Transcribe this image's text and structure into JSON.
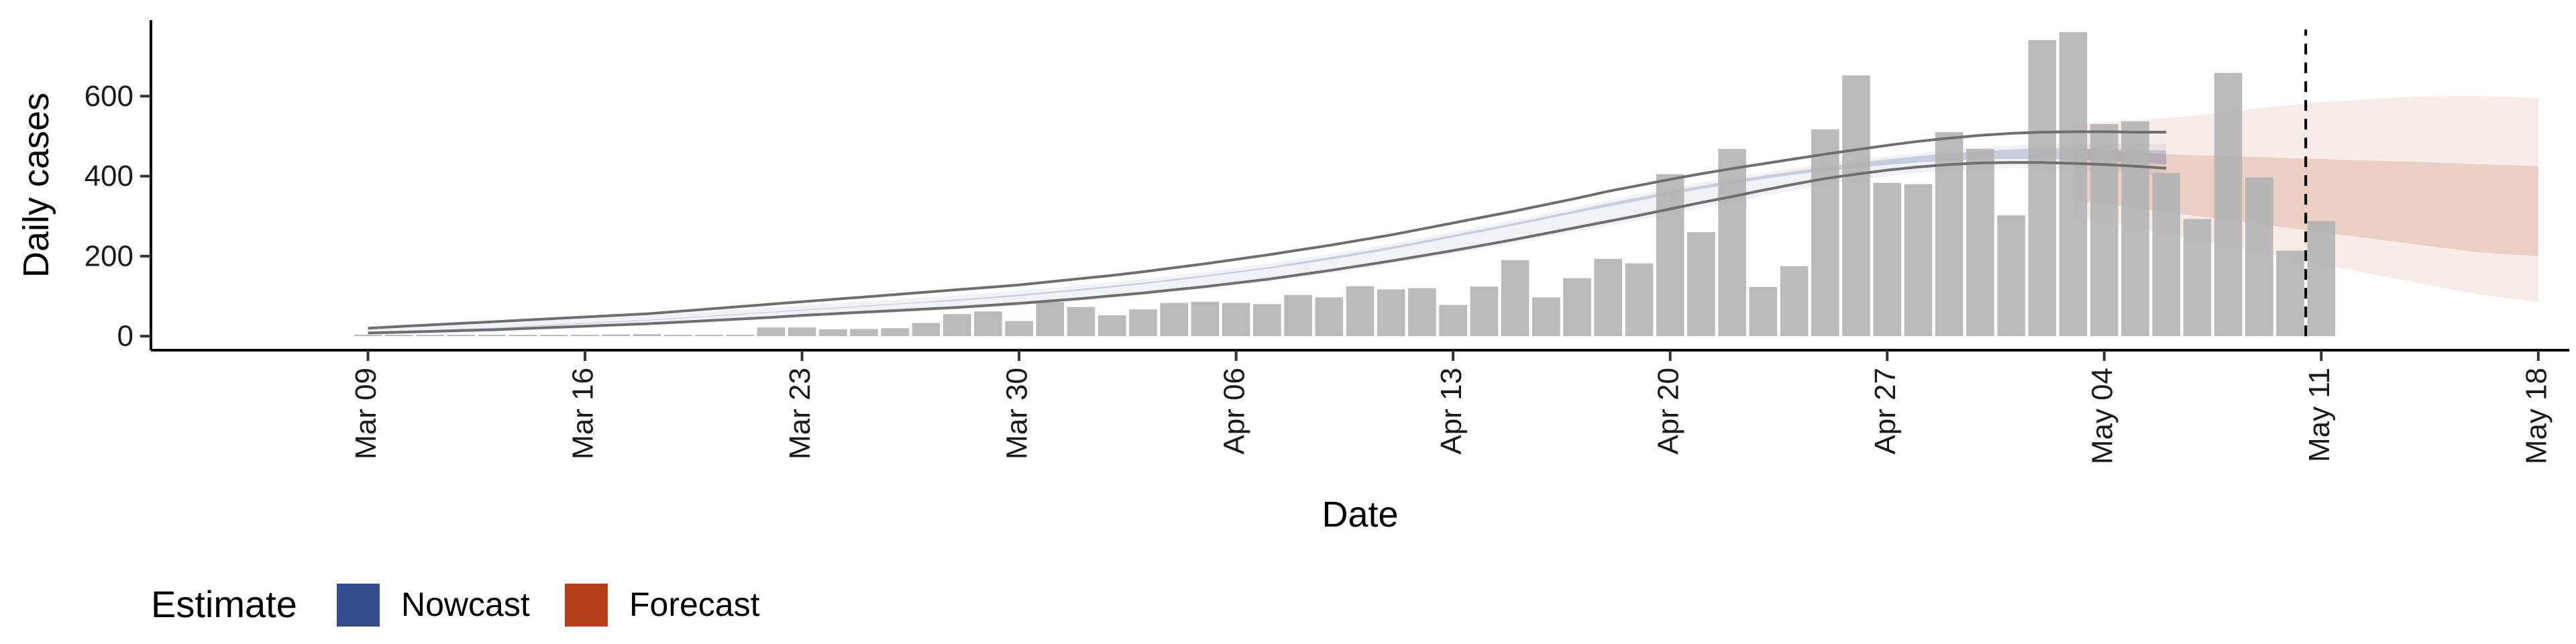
{
  "chart_data": {
    "type": "bar",
    "title": "",
    "xlabel": "Date",
    "ylabel": "Daily cases",
    "ylim": [
      -35,
      790
    ],
    "xlim": [
      "2020-03-02",
      "2020-05-19"
    ],
    "x_tick_dates": [
      "2020-03-09",
      "2020-03-16",
      "2020-03-23",
      "2020-03-30",
      "2020-04-06",
      "2020-04-13",
      "2020-04-20",
      "2020-04-27",
      "2020-05-04",
      "2020-05-11",
      "2020-05-18"
    ],
    "x_tick_labels": [
      "Mar 09",
      "Mar 16",
      "Mar 23",
      "Mar 30",
      "Apr 06",
      "Apr 13",
      "Apr 20",
      "Apr 27",
      "May 04",
      "May 11",
      "May 18"
    ],
    "y_ticks": [
      0,
      200,
      400,
      600
    ],
    "y_tick_labels": [
      "0",
      "200",
      "400",
      "600"
    ],
    "grid": false,
    "vline_date": "2020-05-10",
    "bars": {
      "start_date": "2020-03-09",
      "values": [
        1,
        0,
        0,
        0,
        0,
        0,
        2,
        0,
        4,
        5,
        3,
        0,
        0,
        22,
        22,
        17,
        18,
        20,
        33,
        55,
        62,
        38,
        85,
        73,
        52,
        67,
        83,
        86,
        83,
        80,
        103,
        97,
        125,
        117,
        120,
        78,
        124,
        190,
        97,
        145,
        193,
        182,
        405,
        260,
        468,
        123,
        175,
        517,
        652,
        383,
        380,
        510,
        468,
        302,
        740,
        760,
        530,
        537,
        408,
        293,
        658,
        397,
        214,
        288
      ],
      "color": "#b3b3b3"
    },
    "nowcast": {
      "start_date": "2020-03-09",
      "color": "#334c8c",
      "median": [
        8,
        11,
        14,
        17,
        20,
        24,
        28,
        32,
        36,
        40,
        45,
        50,
        55,
        60,
        65,
        70,
        75,
        80,
        85,
        90,
        96,
        102,
        109,
        116,
        124,
        132,
        141,
        150,
        160,
        170,
        182,
        194,
        207,
        220,
        235,
        250,
        265,
        280,
        296,
        312,
        328,
        343,
        358,
        372,
        385,
        397,
        408,
        418,
        427,
        435,
        442,
        448,
        452,
        455,
        456,
        455,
        453,
        450,
        447
      ],
      "inner_low": [
        7,
        10,
        13,
        16,
        19,
        23,
        27,
        31,
        35,
        39,
        44,
        49,
        54,
        59,
        64,
        69,
        74,
        79,
        84,
        88,
        94,
        100,
        107,
        114,
        122,
        130,
        139,
        148,
        158,
        168,
        179,
        191,
        204,
        217,
        232,
        247,
        262,
        277,
        293,
        309,
        324,
        339,
        354,
        368,
        381,
        393,
        404,
        413,
        421,
        428,
        434,
        439,
        442,
        443,
        443,
        441,
        438,
        434,
        430
      ],
      "inner_high": [
        9,
        12,
        15,
        18,
        21,
        25,
        29,
        33,
        37,
        41,
        46,
        51,
        56,
        61,
        66,
        71,
        76,
        81,
        86,
        92,
        98,
        104,
        111,
        118,
        126,
        134,
        143,
        152,
        162,
        172,
        185,
        197,
        210,
        223,
        238,
        253,
        268,
        283,
        299,
        315,
        332,
        347,
        362,
        376,
        389,
        401,
        412,
        423,
        433,
        442,
        450,
        457,
        462,
        467,
        469,
        469,
        468,
        466,
        464
      ],
      "outer_low": [
        3,
        5,
        7,
        9,
        11,
        14,
        17,
        20,
        23,
        26,
        30,
        34,
        38,
        42,
        46,
        50,
        54,
        58,
        62,
        66,
        71,
        76,
        82,
        88,
        95,
        102,
        110,
        118,
        127,
        136,
        146,
        157,
        168,
        180,
        193,
        206,
        219,
        233,
        248,
        262,
        276,
        290,
        305,
        320,
        335,
        350,
        365,
        379,
        390,
        400,
        408,
        414,
        418,
        420,
        420,
        418,
        414,
        408,
        400
      ],
      "outer_high": [
        17,
        20,
        24,
        28,
        32,
        36,
        40,
        44,
        48,
        52,
        57,
        62,
        67,
        72,
        77,
        82,
        87,
        92,
        97,
        102,
        108,
        114,
        121,
        128,
        135,
        143,
        152,
        161,
        171,
        181,
        193,
        205,
        218,
        231,
        246,
        261,
        276,
        291,
        307,
        323,
        340,
        355,
        370,
        384,
        397,
        409,
        420,
        430,
        440,
        450,
        458,
        466,
        472,
        477,
        480,
        481,
        481,
        480,
        480
      ]
    },
    "bounds_lines": {
      "start_date": "2020-03-09",
      "color": "#6e6e6e",
      "lower": [
        8,
        10,
        12,
        14,
        16,
        19,
        22,
        25,
        28,
        31,
        35,
        39,
        43,
        47,
        52,
        56,
        60,
        64,
        68,
        72,
        77,
        82,
        88,
        94,
        101,
        108,
        116,
        124,
        133,
        142,
        153,
        164,
        176,
        188,
        201,
        214,
        228,
        242,
        257,
        272,
        287,
        302,
        318,
        334,
        349,
        365,
        380,
        394,
        405,
        415,
        423,
        429,
        433,
        434,
        434,
        432,
        429,
        425,
        420
      ],
      "upper": [
        20,
        24,
        28,
        32,
        36,
        40,
        44,
        48,
        52,
        56,
        62,
        68,
        74,
        80,
        86,
        92,
        98,
        104,
        110,
        116,
        122,
        128,
        136,
        144,
        152,
        161,
        171,
        181,
        192,
        203,
        215,
        227,
        240,
        253,
        268,
        283,
        298,
        313,
        329,
        345,
        362,
        377,
        392,
        406,
        419,
        431,
        443,
        455,
        466,
        477,
        487,
        495,
        502,
        507,
        510,
        511,
        511,
        510,
        510
      ]
    },
    "forecast": {
      "start_date": "2020-05-03",
      "color": "#b5401a",
      "inner_low": [
        340,
        330,
        320,
        310,
        300,
        290,
        280,
        270,
        260,
        250,
        240,
        230,
        220,
        210,
        205,
        200
      ],
      "inner_high": [
        470,
        465,
        460,
        455,
        452,
        450,
        448,
        445,
        443,
        440,
        438,
        436,
        433,
        430,
        428,
        425
      ],
      "outer_low": [
        300,
        285,
        270,
        255,
        240,
        225,
        210,
        195,
        180,
        165,
        150,
        135,
        120,
        105,
        95,
        85
      ],
      "outer_high": [
        530,
        535,
        540,
        545,
        552,
        560,
        570,
        578,
        585,
        590,
        595,
        598,
        600,
        600,
        598,
        595
      ]
    },
    "legend": {
      "title": "Estimate",
      "placement": "bottom-left",
      "entries": [
        {
          "label": "Nowcast",
          "color": "#334c8c"
        },
        {
          "label": "Forecast",
          "color": "#b5401a"
        }
      ]
    }
  }
}
